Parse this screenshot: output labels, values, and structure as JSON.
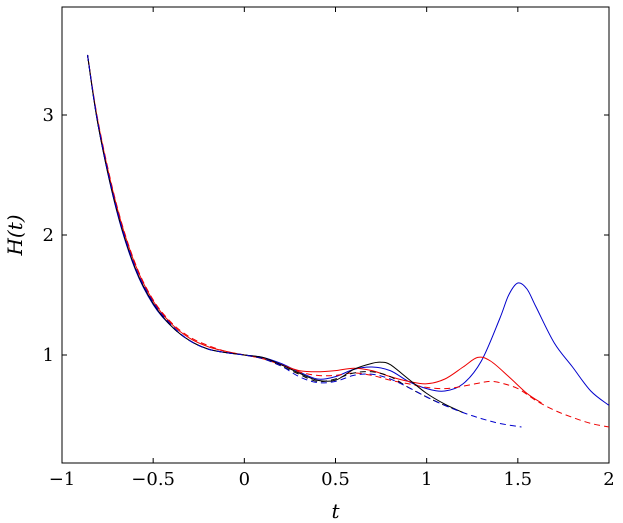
{
  "chart_data": {
    "type": "line",
    "title": "",
    "xlabel": "t",
    "ylabel": "H(t)",
    "xlim": [
      -1,
      2
    ],
    "ylim": [
      0.1,
      3.9
    ],
    "x_ticks": [
      -1,
      -0.5,
      0,
      0.5,
      1,
      1.5,
      2
    ],
    "x_tick_labels": [
      "−1",
      "−0.5",
      "0",
      "0.5",
      "1",
      "1.5",
      "2"
    ],
    "y_ticks": [
      1,
      2,
      3
    ],
    "y_tick_labels": [
      "1",
      "2",
      "3"
    ],
    "grid": false,
    "legend": "none",
    "series": [
      {
        "color": "#0000cc",
        "dash": "solid",
        "x": [
          -0.86,
          -0.8,
          -0.7,
          -0.6,
          -0.5,
          -0.4,
          -0.3,
          -0.2,
          -0.1,
          0,
          0.1,
          0.2,
          0.3,
          0.4,
          0.5,
          0.6,
          0.7,
          0.8,
          0.9,
          1.0,
          1.1,
          1.2,
          1.3,
          1.4,
          1.45,
          1.5,
          1.55,
          1.6,
          1.7,
          1.8,
          1.9,
          2.0
        ],
        "y": [
          3.5,
          2.9,
          2.2,
          1.72,
          1.42,
          1.24,
          1.12,
          1.05,
          1.02,
          1.0,
          0.98,
          0.93,
          0.86,
          0.8,
          0.82,
          0.88,
          0.9,
          0.87,
          0.78,
          0.72,
          0.7,
          0.76,
          0.95,
          1.3,
          1.5,
          1.6,
          1.55,
          1.4,
          1.1,
          0.9,
          0.7,
          0.58
        ]
      },
      {
        "color": "#ee0000",
        "dash": "solid",
        "x": [
          -0.86,
          -0.8,
          -0.7,
          -0.6,
          -0.5,
          -0.4,
          -0.3,
          -0.2,
          -0.1,
          0,
          0.1,
          0.2,
          0.3,
          0.4,
          0.5,
          0.6,
          0.7,
          0.8,
          0.9,
          1.0,
          1.1,
          1.2,
          1.28,
          1.35,
          1.45,
          1.55,
          1.63
        ],
        "y": [
          3.5,
          2.92,
          2.24,
          1.76,
          1.45,
          1.26,
          1.14,
          1.07,
          1.03,
          1.0,
          0.97,
          0.92,
          0.87,
          0.86,
          0.87,
          0.89,
          0.87,
          0.82,
          0.78,
          0.76,
          0.8,
          0.9,
          0.98,
          0.95,
          0.82,
          0.68,
          0.6
        ]
      },
      {
        "color": "#ee0000",
        "dash": "dashed",
        "x": [
          -0.86,
          -0.8,
          -0.7,
          -0.6,
          -0.5,
          -0.4,
          -0.3,
          -0.2,
          -0.1,
          0,
          0.1,
          0.2,
          0.3,
          0.4,
          0.5,
          0.6,
          0.7,
          0.8,
          0.9,
          1.0,
          1.1,
          1.2,
          1.3,
          1.35,
          1.4,
          1.5,
          1.6,
          1.7,
          1.8,
          1.9,
          2.0
        ],
        "y": [
          3.5,
          2.93,
          2.25,
          1.77,
          1.46,
          1.27,
          1.15,
          1.08,
          1.03,
          1.0,
          0.97,
          0.92,
          0.86,
          0.83,
          0.83,
          0.85,
          0.83,
          0.79,
          0.76,
          0.73,
          0.72,
          0.74,
          0.77,
          0.78,
          0.77,
          0.72,
          0.62,
          0.54,
          0.48,
          0.43,
          0.4
        ]
      },
      {
        "color": "#000000",
        "dash": "solid",
        "x": [
          -0.86,
          -0.8,
          -0.7,
          -0.6,
          -0.5,
          -0.4,
          -0.3,
          -0.2,
          -0.1,
          0,
          0.1,
          0.2,
          0.3,
          0.4,
          0.5,
          0.6,
          0.7,
          0.75,
          0.8,
          0.9,
          1.0,
          1.1,
          1.2
        ],
        "y": [
          3.5,
          2.9,
          2.21,
          1.73,
          1.43,
          1.24,
          1.12,
          1.05,
          1.02,
          1.0,
          0.98,
          0.92,
          0.85,
          0.79,
          0.79,
          0.88,
          0.93,
          0.94,
          0.92,
          0.8,
          0.68,
          0.59,
          0.52
        ]
      },
      {
        "color": "#000000",
        "dash": "dashed",
        "x": [
          -0.86,
          -0.8,
          -0.7,
          -0.6,
          -0.5,
          -0.4,
          -0.3,
          -0.2,
          -0.1,
          0,
          0.1,
          0.2,
          0.3,
          0.4,
          0.5,
          0.6,
          0.7,
          0.8,
          0.9,
          1.0,
          1.1,
          1.2
        ],
        "y": [
          3.5,
          2.9,
          2.21,
          1.73,
          1.43,
          1.24,
          1.12,
          1.05,
          1.02,
          1.0,
          0.97,
          0.91,
          0.84,
          0.78,
          0.8,
          0.85,
          0.86,
          0.82,
          0.73,
          0.65,
          0.58,
          0.52
        ]
      },
      {
        "color": "#0000cc",
        "dash": "dashed",
        "x": [
          -0.86,
          -0.8,
          -0.7,
          -0.6,
          -0.5,
          -0.4,
          -0.3,
          -0.2,
          -0.1,
          0,
          0.1,
          0.2,
          0.3,
          0.4,
          0.5,
          0.6,
          0.7,
          0.8,
          0.9,
          1.0,
          1.1,
          1.2,
          1.3,
          1.4,
          1.52
        ],
        "y": [
          3.5,
          2.91,
          2.22,
          1.74,
          1.44,
          1.25,
          1.12,
          1.05,
          1.02,
          1.0,
          0.97,
          0.91,
          0.82,
          0.77,
          0.78,
          0.83,
          0.84,
          0.8,
          0.73,
          0.65,
          0.58,
          0.52,
          0.47,
          0.43,
          0.4
        ]
      }
    ]
  }
}
